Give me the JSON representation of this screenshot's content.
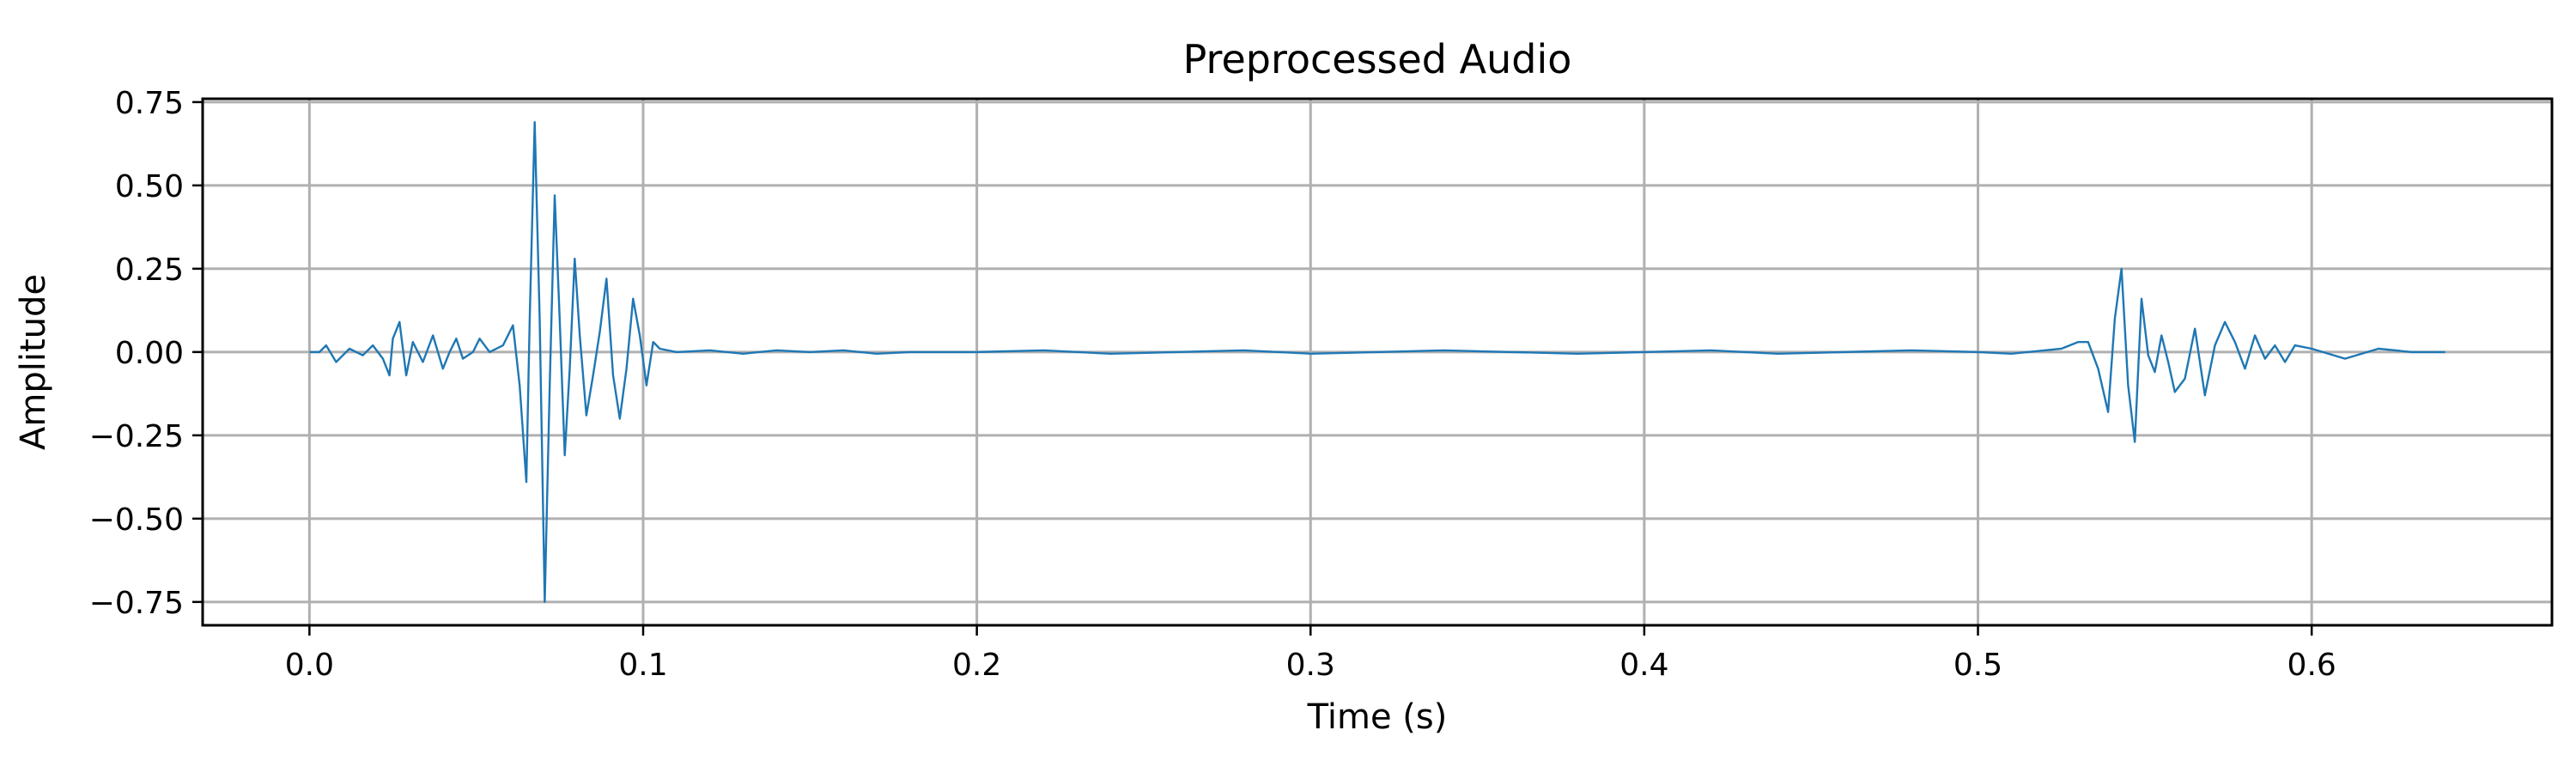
{
  "chart_data": {
    "type": "line",
    "title": "Preprocessed Audio",
    "xlabel": "Time (s)",
    "ylabel": "Amplitude",
    "xlim": [
      -0.032,
      0.672
    ],
    "ylim": [
      -0.82,
      0.76
    ],
    "grid": true,
    "x_ticks": [
      0.0,
      0.1,
      0.2,
      0.3,
      0.4,
      0.5,
      0.6
    ],
    "x_tick_labels": [
      "0.0",
      "0.1",
      "0.2",
      "0.3",
      "0.4",
      "0.5",
      "0.6"
    ],
    "y_ticks": [
      0.75,
      0.5,
      0.25,
      0.0,
      -0.25,
      -0.5,
      -0.75
    ],
    "y_tick_labels": [
      "0.75",
      "0.50",
      "0.25",
      "0.00",
      "−0.25",
      "−0.50",
      "−0.75"
    ],
    "series": [
      {
        "color": "#1f77b4",
        "x": [
          0.0,
          0.003,
          0.005,
          0.008,
          0.012,
          0.016,
          0.019,
          0.022,
          0.024,
          0.025,
          0.027,
          0.029,
          0.031,
          0.034,
          0.037,
          0.04,
          0.042,
          0.044,
          0.046,
          0.049,
          0.051,
          0.054,
          0.058,
          0.061,
          0.063,
          0.065,
          0.066,
          0.0675,
          0.069,
          0.0705,
          0.072,
          0.0735,
          0.075,
          0.0765,
          0.078,
          0.0795,
          0.081,
          0.083,
          0.085,
          0.087,
          0.089,
          0.091,
          0.093,
          0.095,
          0.097,
          0.099,
          0.101,
          0.103,
          0.105,
          0.11,
          0.12,
          0.13,
          0.14,
          0.15,
          0.16,
          0.17,
          0.18,
          0.2,
          0.22,
          0.24,
          0.26,
          0.28,
          0.3,
          0.32,
          0.34,
          0.36,
          0.38,
          0.4,
          0.42,
          0.44,
          0.46,
          0.48,
          0.5,
          0.51,
          0.52,
          0.525,
          0.53,
          0.533,
          0.536,
          0.539,
          0.541,
          0.543,
          0.545,
          0.547,
          0.549,
          0.551,
          0.553,
          0.555,
          0.557,
          0.559,
          0.562,
          0.565,
          0.568,
          0.571,
          0.574,
          0.577,
          0.58,
          0.583,
          0.586,
          0.589,
          0.592,
          0.595,
          0.6,
          0.61,
          0.62,
          0.63,
          0.64
        ],
        "values": [
          0.0,
          0.0,
          0.02,
          -0.03,
          0.01,
          -0.01,
          0.02,
          -0.02,
          -0.07,
          0.04,
          0.09,
          -0.07,
          0.03,
          -0.03,
          0.05,
          -0.05,
          0.0,
          0.04,
          -0.02,
          0.0,
          0.04,
          0.0,
          0.02,
          0.08,
          -0.1,
          -0.39,
          0.1,
          0.69,
          0.1,
          -0.75,
          -0.1,
          0.47,
          0.1,
          -0.31,
          -0.05,
          0.28,
          0.05,
          -0.19,
          -0.07,
          0.06,
          0.22,
          -0.07,
          -0.2,
          -0.05,
          0.16,
          0.05,
          -0.1,
          0.03,
          0.01,
          0.0,
          0.005,
          -0.005,
          0.005,
          0.0,
          0.005,
          -0.005,
          0.0,
          0.0,
          0.005,
          -0.005,
          0.0,
          0.005,
          -0.005,
          0.0,
          0.005,
          0.0,
          -0.005,
          0.0,
          0.005,
          -0.005,
          0.0,
          0.005,
          0.0,
          -0.005,
          0.005,
          0.01,
          0.03,
          0.03,
          -0.05,
          -0.18,
          0.1,
          0.25,
          -0.1,
          -0.27,
          0.16,
          -0.01,
          -0.06,
          0.05,
          -0.03,
          -0.12,
          -0.08,
          0.07,
          -0.13,
          0.02,
          0.09,
          0.03,
          -0.05,
          0.05,
          -0.02,
          0.02,
          -0.03,
          0.02,
          0.01,
          -0.02,
          0.01,
          0.0,
          0.0
        ]
      }
    ]
  }
}
